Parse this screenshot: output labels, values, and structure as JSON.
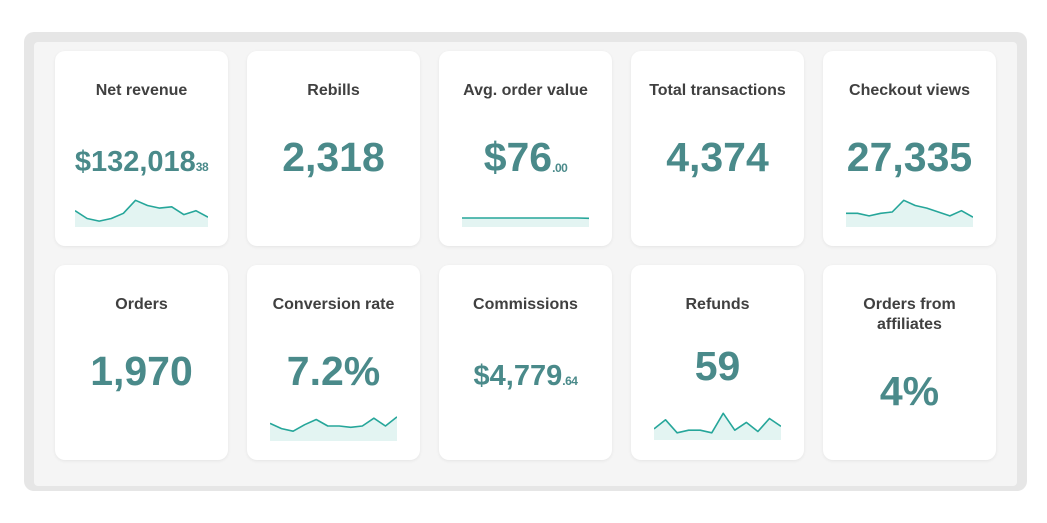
{
  "colors": {
    "accent": "#4a8a8a",
    "line": "#26a69a",
    "fill": "#e3f4f2"
  },
  "cards": [
    {
      "title": "Net revenue",
      "value": "$132,018",
      "cents": "38",
      "spark": [
        0.55,
        0.25,
        0.15,
        0.25,
        0.45,
        0.95,
        0.75,
        0.65,
        0.7,
        0.4,
        0.55,
        0.3
      ]
    },
    {
      "title": "Rebills",
      "value": "2,318"
    },
    {
      "title": "Avg. order value",
      "value": "$76",
      "cents": ".00",
      "spark": [
        0.5,
        0.5,
        0.5,
        0.5,
        0.5,
        0.5,
        0.5,
        0.5,
        0.5,
        0.5,
        0.5,
        0.48
      ]
    },
    {
      "title": "Total transactions",
      "value": "4,374"
    },
    {
      "title": "Checkout views",
      "value": "27,335",
      "spark": [
        0.45,
        0.45,
        0.35,
        0.45,
        0.5,
        0.95,
        0.75,
        0.65,
        0.5,
        0.35,
        0.55,
        0.3
      ]
    },
    {
      "title": "Orders",
      "value": "1,970"
    },
    {
      "title": "Conversion rate",
      "value": "7.2%",
      "spark": [
        0.6,
        0.4,
        0.3,
        0.55,
        0.75,
        0.5,
        0.5,
        0.45,
        0.5,
        0.8,
        0.5,
        0.85
      ]
    },
    {
      "title": "Commissions",
      "value": "$4,779",
      "cents": ".64"
    },
    {
      "title": "Refunds",
      "value": "59",
      "spark": [
        0.35,
        0.7,
        0.2,
        0.3,
        0.3,
        0.2,
        0.95,
        0.3,
        0.6,
        0.25,
        0.75,
        0.45
      ]
    },
    {
      "title": "Orders from affiliates",
      "value": "4%"
    }
  ]
}
